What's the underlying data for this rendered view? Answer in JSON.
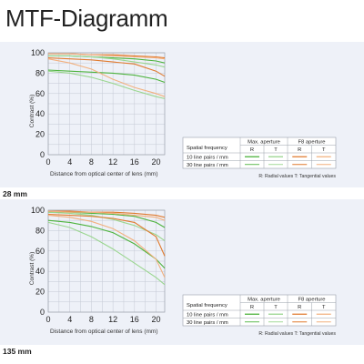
{
  "title": "MTF-Diagramm",
  "colors": {
    "max_aperture_radial": "#4db33d",
    "max_aperture_tangential": "#9ad68f",
    "f8_radial": "#e07a2e",
    "f8_tangential": "#f2b07e",
    "panel_background": "#eef1f8"
  },
  "legend": {
    "header_spatial": "Spatial frequency",
    "header_max": "Max. aperture",
    "header_f8": "F8 aperture",
    "col_r": "R",
    "col_t": "T",
    "row_10": "10 line pairs / mm",
    "row_30": "30 line pairs / mm",
    "note": "R: Radial values  T: Tangential values"
  },
  "chart_data": [
    {
      "type": "line",
      "lens_label": "28 mm",
      "xlabel": "Distance from optical center of lens (mm)",
      "ylabel": "Contrast (%)",
      "xlim": [
        0,
        21.6
      ],
      "ylim": [
        0,
        100
      ],
      "xticks": [
        0,
        4,
        8,
        12,
        16,
        20
      ],
      "yticks": [
        0,
        20,
        40,
        60,
        80,
        100
      ],
      "grid": true,
      "series": [
        {
          "color_key": "max_aperture_radial",
          "x": [
            0,
            4,
            8,
            12,
            16,
            20,
            21.6
          ],
          "y": [
            97,
            97,
            96,
            95,
            94,
            92,
            90
          ]
        },
        {
          "color_key": "max_aperture_tangential",
          "x": [
            0,
            4,
            8,
            12,
            16,
            20,
            21.6
          ],
          "y": [
            97,
            97,
            96,
            94,
            91,
            88,
            86
          ]
        },
        {
          "color_key": "max_aperture_radial",
          "x": [
            0,
            4,
            8,
            12,
            16,
            20,
            21.6
          ],
          "y": [
            83,
            82,
            81,
            80,
            78,
            74,
            71
          ]
        },
        {
          "color_key": "max_aperture_tangential",
          "x": [
            0,
            4,
            8,
            12,
            16,
            20,
            21.6
          ],
          "y": [
            82,
            80,
            76,
            70,
            63,
            57,
            55
          ]
        },
        {
          "color_key": "f8_radial",
          "x": [
            0,
            4,
            8,
            12,
            16,
            20,
            21.6
          ],
          "y": [
            99,
            99,
            98,
            98,
            97,
            96,
            95
          ]
        },
        {
          "color_key": "f8_tangential",
          "x": [
            0,
            4,
            8,
            12,
            16,
            20,
            21.6
          ],
          "y": [
            99,
            99,
            98,
            97,
            96,
            95,
            94
          ]
        },
        {
          "color_key": "f8_radial",
          "x": [
            0,
            4,
            8,
            12,
            16,
            20,
            21.6
          ],
          "y": [
            95,
            94,
            93,
            91,
            89,
            82,
            77
          ]
        },
        {
          "color_key": "f8_tangential",
          "x": [
            0,
            4,
            8,
            12,
            16,
            20,
            21.6
          ],
          "y": [
            94,
            90,
            84,
            74,
            66,
            60,
            57
          ]
        }
      ]
    },
    {
      "type": "line",
      "lens_label": "135 mm",
      "xlabel": "Distance from optical center of lens (mm)",
      "ylabel": "Contrast (%)",
      "xlim": [
        0,
        21.6
      ],
      "ylim": [
        0,
        100
      ],
      "xticks": [
        0,
        4,
        8,
        12,
        16,
        20
      ],
      "yticks": [
        0,
        20,
        40,
        60,
        80,
        100
      ],
      "grid": true,
      "series": [
        {
          "color_key": "max_aperture_radial",
          "x": [
            0,
            4,
            8,
            12,
            16,
            20,
            21.6
          ],
          "y": [
            98,
            98,
            97,
            96,
            94,
            88,
            83
          ]
        },
        {
          "color_key": "max_aperture_tangential",
          "x": [
            0,
            4,
            8,
            12,
            16,
            20,
            21.6
          ],
          "y": [
            98,
            97,
            95,
            91,
            85,
            76,
            70
          ]
        },
        {
          "color_key": "max_aperture_radial",
          "x": [
            0,
            4,
            8,
            12,
            16,
            20,
            21.6
          ],
          "y": [
            90,
            88,
            84,
            78,
            67,
            52,
            43
          ]
        },
        {
          "color_key": "max_aperture_tangential",
          "x": [
            0,
            4,
            8,
            12,
            16,
            20,
            21.6
          ],
          "y": [
            88,
            83,
            74,
            62,
            48,
            34,
            27
          ]
        },
        {
          "color_key": "f8_radial",
          "x": [
            0,
            4,
            8,
            12,
            16,
            20,
            21.6
          ],
          "y": [
            99,
            99,
            98,
            98,
            97,
            95,
            93
          ]
        },
        {
          "color_key": "f8_tangential",
          "x": [
            0,
            4,
            8,
            12,
            16,
            20,
            21.6
          ],
          "y": [
            99,
            98,
            98,
            97,
            95,
            93,
            90
          ]
        },
        {
          "color_key": "f8_radial",
          "x": [
            0,
            4,
            8,
            12,
            16,
            20,
            21.6
          ],
          "y": [
            96,
            95,
            94,
            92,
            88,
            74,
            55
          ]
        },
        {
          "color_key": "f8_tangential",
          "x": [
            0,
            4,
            8,
            12,
            16,
            20,
            21.6
          ],
          "y": [
            95,
            93,
            89,
            82,
            70,
            52,
            34
          ]
        }
      ]
    }
  ]
}
